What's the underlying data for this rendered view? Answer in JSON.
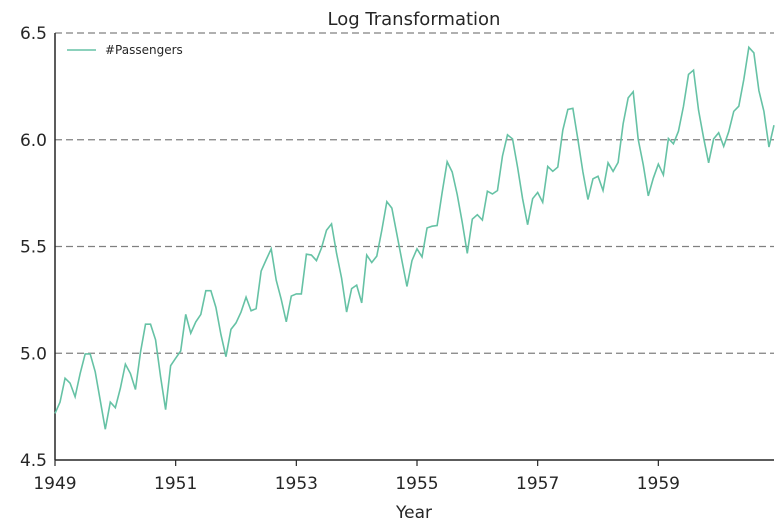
{
  "chart_data": {
    "type": "line",
    "title": "Log Transformation",
    "xlabel": "Year",
    "ylabel": "",
    "xlim": [
      1949,
      1960.917
    ],
    "ylim": [
      4.5,
      6.5
    ],
    "xticks": [
      "1949",
      "1951",
      "1953",
      "1955",
      "1957",
      "1959"
    ],
    "yticks": [
      "4.5",
      "5.0",
      "5.5",
      "6.0",
      "6.5"
    ],
    "grid": "horizontal dashed",
    "legend_position": "top-left",
    "color": "#66c2a5",
    "x_start": "1949-01",
    "x_step": "monthly",
    "series": [
      {
        "name": "#Passengers",
        "values": [
          4.718,
          4.771,
          4.883,
          4.86,
          4.796,
          4.905,
          4.997,
          4.997,
          4.913,
          4.779,
          4.644,
          4.771,
          4.745,
          4.836,
          4.949,
          4.905,
          4.83,
          5.004,
          5.136,
          5.136,
          5.063,
          4.89,
          4.736,
          4.942,
          4.977,
          5.011,
          5.182,
          5.094,
          5.147,
          5.182,
          5.293,
          5.293,
          5.215,
          5.088,
          4.984,
          5.112,
          5.142,
          5.193,
          5.263,
          5.199,
          5.209,
          5.385,
          5.438,
          5.489,
          5.342,
          5.252,
          5.147,
          5.268,
          5.278,
          5.278,
          5.464,
          5.46,
          5.434,
          5.493,
          5.576,
          5.606,
          5.468,
          5.352,
          5.193,
          5.303,
          5.319,
          5.236,
          5.46,
          5.425,
          5.455,
          5.576,
          5.71,
          5.68,
          5.557,
          5.434,
          5.313,
          5.434,
          5.489,
          5.451,
          5.587,
          5.595,
          5.598,
          5.753,
          5.897,
          5.849,
          5.743,
          5.613,
          5.468,
          5.628,
          5.649,
          5.624,
          5.759,
          5.746,
          5.762,
          5.924,
          6.023,
          6.004,
          5.872,
          5.724,
          5.602,
          5.724,
          5.753,
          5.707,
          5.875,
          5.852,
          5.872,
          6.045,
          6.142,
          6.147,
          6.001,
          5.849,
          5.72,
          5.817,
          5.829,
          5.762,
          5.892,
          5.852,
          5.894,
          6.075,
          6.196,
          6.225,
          6.001,
          5.883,
          5.737,
          5.82,
          5.886,
          5.835,
          6.006,
          5.981,
          6.04,
          6.157,
          6.306,
          6.326,
          6.138,
          6.009,
          5.892,
          6.004,
          6.033,
          5.969,
          6.038,
          6.133,
          6.157,
          6.282,
          6.433,
          6.407,
          6.23,
          6.133,
          5.966,
          6.068
        ]
      }
    ]
  }
}
